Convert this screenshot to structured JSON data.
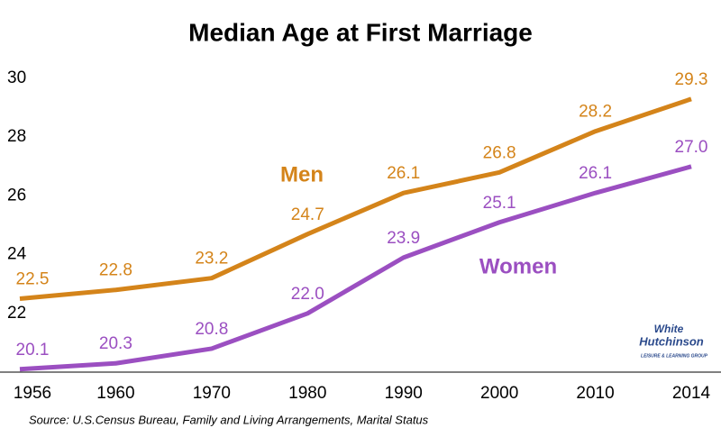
{
  "chart_data": {
    "type": "line",
    "title": "Median Age at First Marriage",
    "categories": [
      "1956",
      "1960",
      "1970",
      "1980",
      "1990",
      "2000",
      "2010",
      "2014"
    ],
    "series": [
      {
        "name": "Men",
        "color": "#d4841a",
        "values": [
          22.5,
          22.8,
          23.2,
          24.7,
          26.1,
          26.8,
          28.2,
          29.3
        ],
        "value_labels": [
          "22.5",
          "22.8",
          "23.2",
          "24.7",
          "26.1",
          "26.8",
          "28.2",
          "29.3"
        ]
      },
      {
        "name": "Women",
        "color": "#9b4fc1",
        "values": [
          20.1,
          20.3,
          20.8,
          22.0,
          23.9,
          25.1,
          26.1,
          27.0
        ],
        "value_labels": [
          "20.1",
          "20.3",
          "20.8",
          "22.0",
          "23.9",
          "25.1",
          "26.1",
          "27.0"
        ]
      }
    ],
    "ylim": [
      20,
      30.4
    ],
    "yticks": [
      22,
      24,
      26,
      28,
      30
    ],
    "grid": false,
    "source": "Source: U.S.Census Bureau, Family and Living Arrangements, Marital Status",
    "logo": [
      "White",
      "Hutchinson",
      "LEISURE & LEARNING GROUP"
    ]
  }
}
